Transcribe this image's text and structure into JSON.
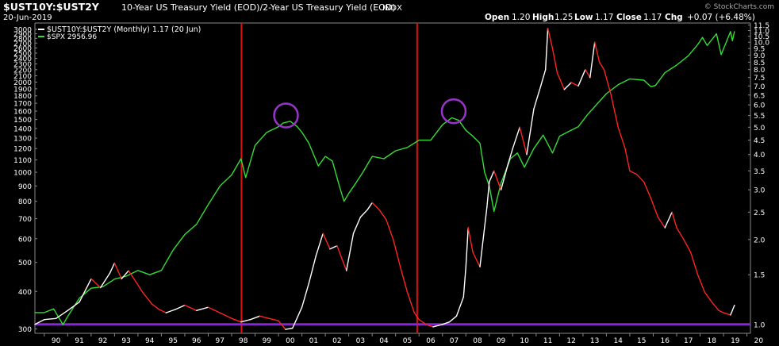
{
  "header": {
    "symbol": "$UST10Y:$UST2Y",
    "description": "10-Year US Treasury Yield (EOD)/2-Year US Treasury Yield (EOD)",
    "exchange": "INDX",
    "date": "20-Jun-2019",
    "watermark": "© StockCharts.com",
    "ohlc": [
      {
        "label": "Open",
        "value": "1.20"
      },
      {
        "label": "High",
        "value": "1.25"
      },
      {
        "label": "Low",
        "value": "1.17"
      },
      {
        "label": "Close",
        "value": "1.17"
      },
      {
        "label": "Chg",
        "value": "+0.07 (+6.48%)"
      }
    ]
  },
  "colors": {
    "background": "#000000",
    "spx": "#33dd33",
    "ratio_normal": "#ffffff",
    "ratio_falling": "#ff2222",
    "vline": "#dd1111",
    "hline": "#8822dd",
    "circle": "#9933cc",
    "text": "#ffffff"
  },
  "chart_data": {
    "type": "line",
    "title": "$UST10Y:$UST2Y 10-Year US Treasury Yield (EOD)/2-Year US Treasury Yield (EOD) INDX",
    "x_tick_labels": [
      "90",
      "91",
      "92",
      "93",
      "94",
      "95",
      "96",
      "97",
      "98",
      "99",
      "00",
      "01",
      "02",
      "03",
      "04",
      "05",
      "06",
      "07",
      "08",
      "09",
      "10",
      "11",
      "12",
      "13",
      "14",
      "15",
      "16",
      "17",
      "18",
      "19",
      "20"
    ],
    "x_range": [
      1989.6,
      2020.15
    ],
    "left_axis": {
      "scale": "log",
      "range": [
        290,
        3150
      ],
      "ticks": [
        300,
        400,
        500,
        600,
        700,
        800,
        900,
        1000,
        1100,
        1200,
        1300,
        1400,
        1500,
        1600,
        1700,
        1800,
        1900,
        2000,
        2100,
        2200,
        2300,
        2400,
        2500,
        2600,
        2700,
        2800,
        2900,
        3000
      ]
    },
    "right_axis": {
      "scale": "log",
      "range": [
        0.93,
        11.7
      ],
      "ticks": [
        "1.0",
        "1.5",
        "2.0",
        "2.5",
        "3.0",
        "3.5",
        "4.0",
        "4.5",
        "5.0",
        "5.5",
        "6.0",
        "6.5",
        "7.0",
        "7.5",
        "8.0",
        "8.5",
        "9.0",
        "9.5",
        "10.0",
        "10.5",
        "11.0",
        "11.5"
      ]
    },
    "grid": false,
    "legend_placement": "top-left",
    "series": [
      {
        "name": "$UST10Y:$UST2Y (Monthly) 1.17 (20 Jun)",
        "axis": "right",
        "color_rule": "white when rising, red when falling",
        "points": [
          [
            1989.6,
            1.0
          ],
          [
            1990.0,
            1.04
          ],
          [
            1990.5,
            1.05
          ],
          [
            1991.0,
            1.12
          ],
          [
            1991.5,
            1.2
          ],
          [
            1992.0,
            1.45
          ],
          [
            1992.4,
            1.35
          ],
          [
            1992.8,
            1.52
          ],
          [
            1993.0,
            1.65
          ],
          [
            1993.3,
            1.45
          ],
          [
            1993.6,
            1.55
          ],
          [
            1993.9,
            1.42
          ],
          [
            1994.2,
            1.3
          ],
          [
            1994.6,
            1.18
          ],
          [
            1994.9,
            1.13
          ],
          [
            1995.2,
            1.1
          ],
          [
            1995.6,
            1.13
          ],
          [
            1996.0,
            1.17
          ],
          [
            1996.5,
            1.12
          ],
          [
            1997.0,
            1.15
          ],
          [
            1997.5,
            1.1
          ],
          [
            1998.0,
            1.05
          ],
          [
            1998.4,
            1.02
          ],
          [
            1998.8,
            1.04
          ],
          [
            1999.2,
            1.07
          ],
          [
            1999.6,
            1.05
          ],
          [
            2000.0,
            1.03
          ],
          [
            2000.3,
            0.96
          ],
          [
            2000.6,
            0.97
          ],
          [
            2001.0,
            1.15
          ],
          [
            2001.3,
            1.4
          ],
          [
            2001.6,
            1.75
          ],
          [
            2001.9,
            2.1
          ],
          [
            2002.2,
            1.85
          ],
          [
            2002.5,
            1.9
          ],
          [
            2002.9,
            1.55
          ],
          [
            2003.2,
            2.1
          ],
          [
            2003.5,
            2.4
          ],
          [
            2003.8,
            2.55
          ],
          [
            2004.0,
            2.7
          ],
          [
            2004.3,
            2.55
          ],
          [
            2004.6,
            2.35
          ],
          [
            2004.9,
            2.0
          ],
          [
            2005.2,
            1.6
          ],
          [
            2005.5,
            1.3
          ],
          [
            2005.8,
            1.1
          ],
          [
            2006.0,
            1.04
          ],
          [
            2006.3,
            1.0
          ],
          [
            2006.6,
            0.98
          ],
          [
            2007.0,
            1.0
          ],
          [
            2007.3,
            1.02
          ],
          [
            2007.6,
            1.07
          ],
          [
            2007.9,
            1.25
          ],
          [
            2008.0,
            1.6
          ],
          [
            2008.1,
            2.2
          ],
          [
            2008.3,
            1.8
          ],
          [
            2008.6,
            1.6
          ],
          [
            2008.9,
            2.6
          ],
          [
            2009.0,
            3.2
          ],
          [
            2009.2,
            3.5
          ],
          [
            2009.5,
            3.0
          ],
          [
            2009.8,
            3.7
          ],
          [
            2010.0,
            4.2
          ],
          [
            2010.3,
            5.0
          ],
          [
            2010.6,
            4.0
          ],
          [
            2010.9,
            5.8
          ],
          [
            2011.2,
            7.0
          ],
          [
            2011.4,
            8.0
          ],
          [
            2011.5,
            11.2
          ],
          [
            2011.7,
            9.5
          ],
          [
            2011.9,
            7.8
          ],
          [
            2012.2,
            6.8
          ],
          [
            2012.5,
            7.2
          ],
          [
            2012.8,
            7.0
          ],
          [
            2013.1,
            8.0
          ],
          [
            2013.3,
            7.5
          ],
          [
            2013.5,
            10.0
          ],
          [
            2013.7,
            8.5
          ],
          [
            2013.9,
            8.0
          ],
          [
            2014.2,
            6.5
          ],
          [
            2014.5,
            5.0
          ],
          [
            2014.8,
            4.2
          ],
          [
            2015.0,
            3.5
          ],
          [
            2015.3,
            3.4
          ],
          [
            2015.6,
            3.2
          ],
          [
            2015.9,
            2.8
          ],
          [
            2016.2,
            2.4
          ],
          [
            2016.5,
            2.2
          ],
          [
            2016.8,
            2.5
          ],
          [
            2017.0,
            2.2
          ],
          [
            2017.3,
            2.0
          ],
          [
            2017.6,
            1.8
          ],
          [
            2017.9,
            1.5
          ],
          [
            2018.2,
            1.3
          ],
          [
            2018.5,
            1.2
          ],
          [
            2018.8,
            1.12
          ],
          [
            2019.0,
            1.1
          ],
          [
            2019.3,
            1.08
          ],
          [
            2019.47,
            1.17
          ]
        ]
      },
      {
        "name": "$SPX 2956.96",
        "axis": "left",
        "color": "#33dd33",
        "points": [
          [
            1989.6,
            340
          ],
          [
            1990.0,
            340
          ],
          [
            1990.4,
            350
          ],
          [
            1990.8,
            310
          ],
          [
            1991.0,
            330
          ],
          [
            1991.5,
            380
          ],
          [
            1992.0,
            410
          ],
          [
            1992.5,
            415
          ],
          [
            1993.0,
            440
          ],
          [
            1993.5,
            450
          ],
          [
            1994.0,
            470
          ],
          [
            1994.5,
            455
          ],
          [
            1995.0,
            470
          ],
          [
            1995.5,
            550
          ],
          [
            1996.0,
            620
          ],
          [
            1996.5,
            670
          ],
          [
            1997.0,
            780
          ],
          [
            1997.5,
            900
          ],
          [
            1998.0,
            980
          ],
          [
            1998.4,
            1110
          ],
          [
            1998.6,
            960
          ],
          [
            1999.0,
            1230
          ],
          [
            1999.5,
            1360
          ],
          [
            2000.0,
            1420
          ],
          [
            2000.2,
            1460
          ],
          [
            2000.5,
            1480
          ],
          [
            2000.8,
            1420
          ],
          [
            2001.0,
            1360
          ],
          [
            2001.3,
            1250
          ],
          [
            2001.7,
            1050
          ],
          [
            2002.0,
            1130
          ],
          [
            2002.3,
            1090
          ],
          [
            2002.6,
            900
          ],
          [
            2002.8,
            800
          ],
          [
            2003.0,
            850
          ],
          [
            2003.3,
            920
          ],
          [
            2003.6,
            1000
          ],
          [
            2004.0,
            1130
          ],
          [
            2004.5,
            1110
          ],
          [
            2005.0,
            1180
          ],
          [
            2005.5,
            1210
          ],
          [
            2006.0,
            1280
          ],
          [
            2006.5,
            1280
          ],
          [
            2007.0,
            1440
          ],
          [
            2007.4,
            1520
          ],
          [
            2007.7,
            1490
          ],
          [
            2008.0,
            1380
          ],
          [
            2008.3,
            1320
          ],
          [
            2008.6,
            1250
          ],
          [
            2008.8,
            1000
          ],
          [
            2009.0,
            900
          ],
          [
            2009.2,
            740
          ],
          [
            2009.5,
            920
          ],
          [
            2009.9,
            1110
          ],
          [
            2010.2,
            1160
          ],
          [
            2010.5,
            1040
          ],
          [
            2010.9,
            1200
          ],
          [
            2011.3,
            1330
          ],
          [
            2011.7,
            1160
          ],
          [
            2012.0,
            1320
          ],
          [
            2012.4,
            1370
          ],
          [
            2012.8,
            1420
          ],
          [
            2013.2,
            1560
          ],
          [
            2013.6,
            1690
          ],
          [
            2014.0,
            1830
          ],
          [
            2014.5,
            1960
          ],
          [
            2015.0,
            2050
          ],
          [
            2015.6,
            2030
          ],
          [
            2015.9,
            1930
          ],
          [
            2016.1,
            1950
          ],
          [
            2016.5,
            2150
          ],
          [
            2017.0,
            2280
          ],
          [
            2017.5,
            2450
          ],
          [
            2017.9,
            2670
          ],
          [
            2018.1,
            2820
          ],
          [
            2018.3,
            2650
          ],
          [
            2018.7,
            2900
          ],
          [
            2018.9,
            2470
          ],
          [
            2019.1,
            2700
          ],
          [
            2019.3,
            2950
          ],
          [
            2019.38,
            2750
          ],
          [
            2019.47,
            2957
          ]
        ]
      }
    ],
    "vertical_markers_x": [
      1998.42,
      2005.92
    ],
    "horizontal_marker_right_value": 1.0,
    "highlight_circles": [
      {
        "x": 2000.32,
        "left_value": 1510
      },
      {
        "x": 2007.48,
        "left_value": 1560
      }
    ]
  }
}
